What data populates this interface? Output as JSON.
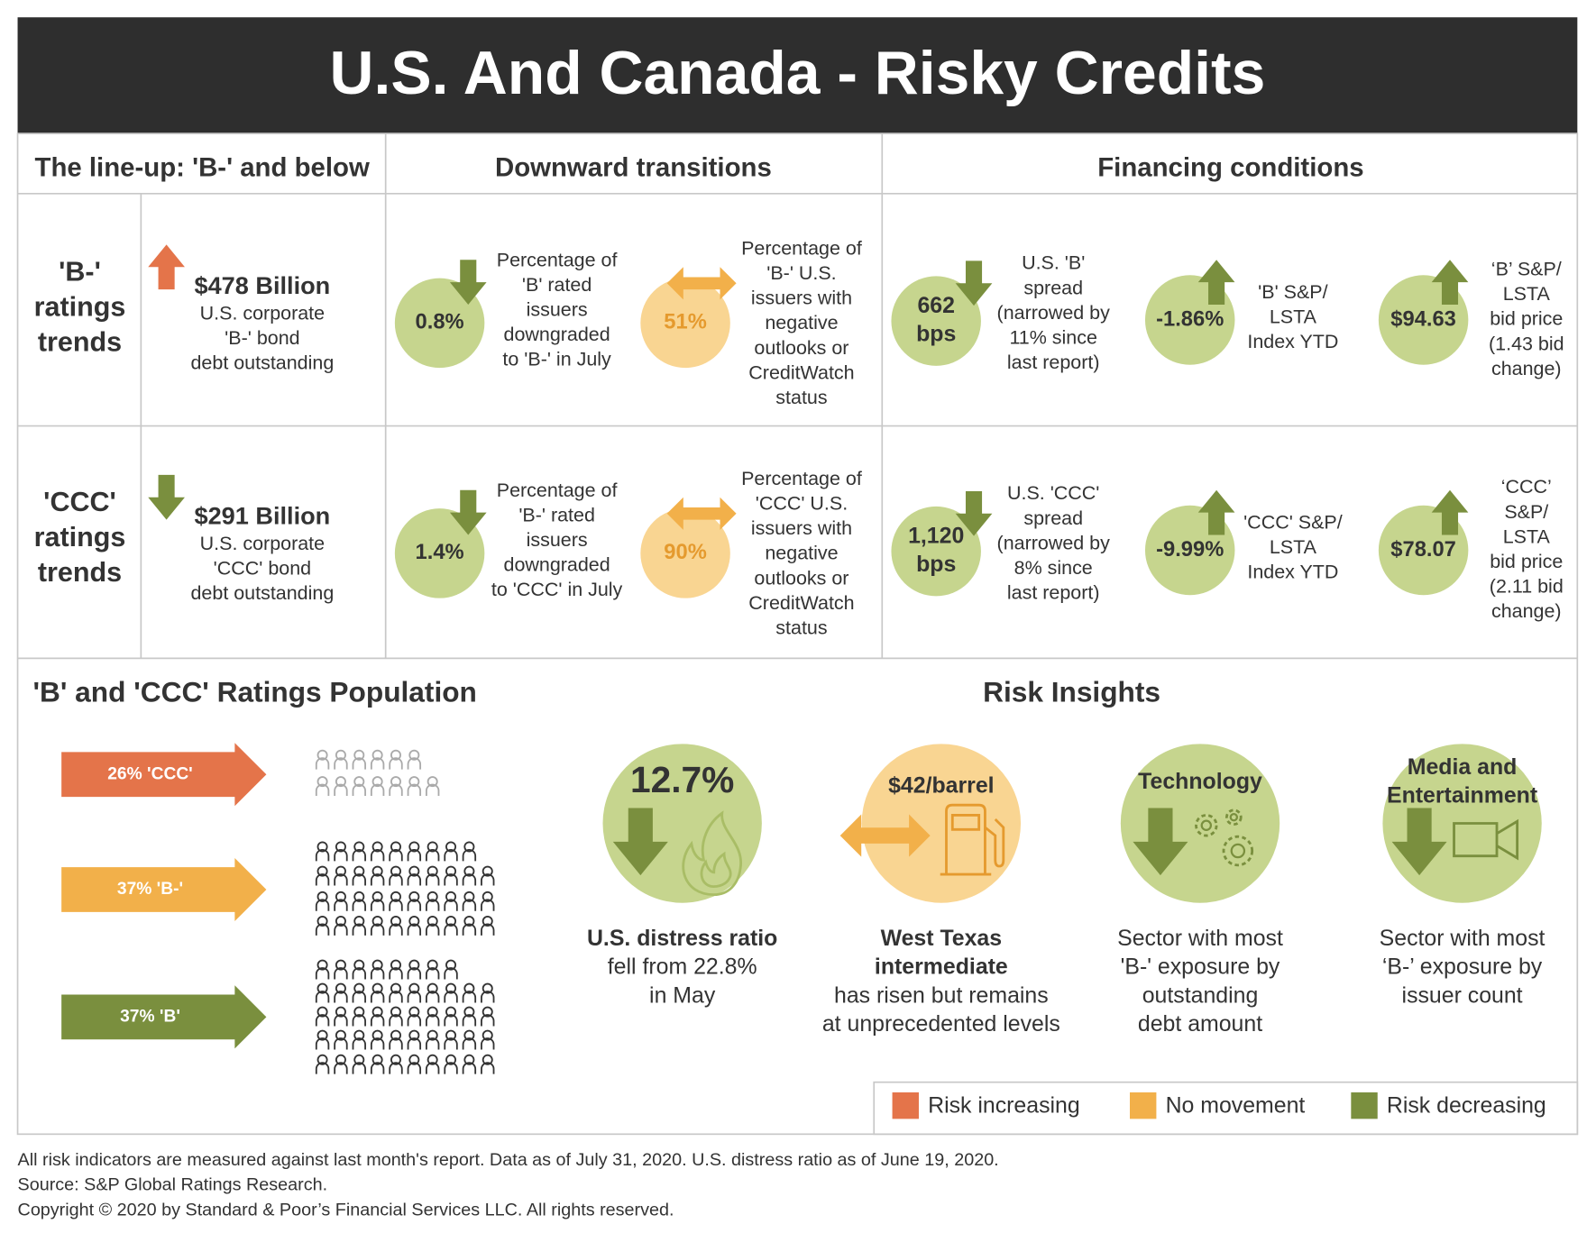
{
  "header": {
    "title": "U.S. And Canada - Risky Credits"
  },
  "columns": [
    "The line-up: 'B-' and below",
    "Downward transitions",
    "Financing conditions"
  ],
  "rows": [
    {
      "label": [
        "'B-'",
        "ratings",
        "trends"
      ],
      "debt": {
        "amount": "$478 Billion",
        "description": [
          "U.S. corporate",
          "'B-' bond",
          "debt outstanding"
        ]
      },
      "downgrades": {
        "value": "0.8%",
        "description": [
          "Percentage of",
          "'B' rated",
          "issuers",
          "downgraded",
          "to 'B-' in July"
        ]
      },
      "outlooks": {
        "value": "51%",
        "description": [
          "Percentage of",
          "'B-' U.S.",
          "issuers with",
          "negative",
          "outlooks or",
          "CreditWatch",
          "status"
        ]
      },
      "spread": {
        "value": [
          "662",
          "bps"
        ],
        "description": [
          "U.S. 'B'",
          "spread",
          "(narrowed by",
          "11% since",
          "last report)"
        ]
      },
      "index": {
        "value": "-1.86%",
        "description": [
          "'B' S&P/",
          "LSTA",
          "Index YTD"
        ]
      },
      "bid_price": {
        "value": "$94.63",
        "description": [
          "‘B’ S&P/",
          "LSTA",
          "bid price",
          "(1.43 bid",
          "change)"
        ]
      }
    },
    {
      "label": [
        "'CCC'",
        "ratings",
        "trends"
      ],
      "debt": {
        "amount": "$291 Billion",
        "description": [
          "U.S. corporate",
          "'CCC' bond",
          "debt outstanding"
        ]
      },
      "downgrades": {
        "value": "1.4%",
        "description": [
          "Percentage of",
          "'B-' rated",
          "issuers",
          "downgraded",
          "to 'CCC' in July"
        ]
      },
      "outlooks": {
        "value": "90%",
        "description": [
          "Percentage of",
          "'CCC' U.S.",
          "issuers with",
          "negative",
          "outlooks or",
          "CreditWatch",
          "status"
        ]
      },
      "spread": {
        "value": [
          "1,120",
          "bps"
        ],
        "description": [
          "U.S. 'CCC'",
          "spread",
          "(narrowed by",
          "8% since",
          "last report)"
        ]
      },
      "index": {
        "value": "-9.99%",
        "description": [
          "'CCC' S&P/",
          "LSTA",
          "Index YTD"
        ]
      },
      "bid_price": {
        "value": "$78.07",
        "description": [
          "‘CCC’",
          "S&P/",
          "LSTA",
          "bid price",
          "(2.11 bid",
          "change)"
        ]
      }
    }
  ],
  "population": {
    "title": "'B' and 'CCC' Ratings Population",
    "groups": [
      "26% 'CCC'",
      "37% 'B-'",
      "37% 'B'"
    ]
  },
  "insights": {
    "title": "Risk Insights",
    "items": [
      {
        "badge": [
          "12.7%"
        ],
        "caption_bold": [
          "U.S. distress ratio"
        ],
        "caption": [
          "fell from 22.8%",
          "in May"
        ]
      },
      {
        "badge": [
          "$42/barrel"
        ],
        "caption_bold": [
          "West Texas",
          "intermediate"
        ],
        "caption": [
          "has risen but remains",
          "at unprecedented levels"
        ]
      },
      {
        "badge": [
          "Technology"
        ],
        "caption": [
          "Sector with most",
          "'B-' exposure by",
          "outstanding",
          "debt amount"
        ]
      },
      {
        "badge": [
          "Media and",
          "Entertainment"
        ],
        "caption": [
          "Sector with most",
          "‘B-’ exposure by",
          "issuer count"
        ]
      }
    ]
  },
  "legend": [
    "Risk increasing",
    "No movement",
    "Risk decreasing"
  ],
  "footer": [
    "All risk indicators are measured against last month's report. Data as of July 31, 2020. U.S. distress ratio as of June 19, 2020.",
    "Source: S&P Global Ratings Research.",
    "Copyright © 2020 by Standard & Poor’s Financial Services LLC. All rights reserved."
  ]
}
